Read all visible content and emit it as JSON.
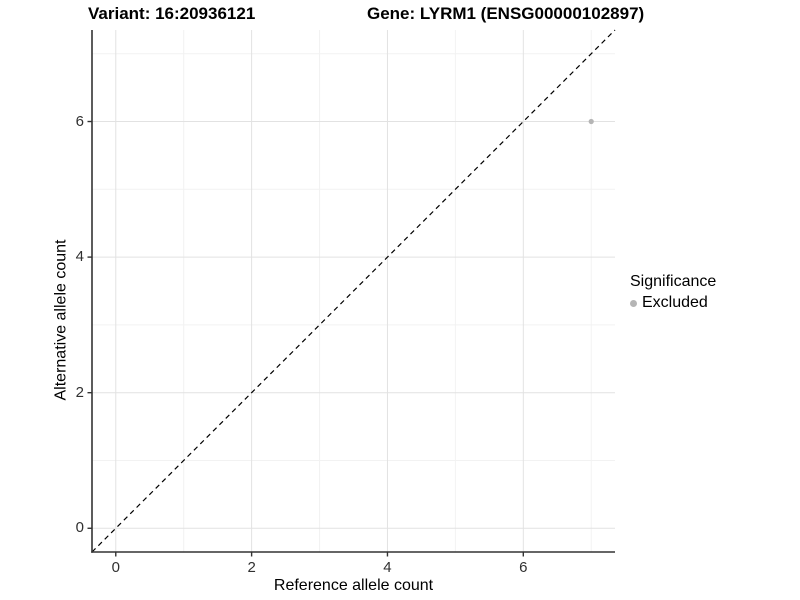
{
  "titles": {
    "left": "Variant: 16:20936121",
    "right": "Gene: LYRM1 (ENSG00000102897)"
  },
  "chart_data": {
    "type": "scatter",
    "title_left": "Variant: 16:20936121",
    "title_right": "Gene: LYRM1 (ENSG00000102897)",
    "xlabel": "Reference allele count",
    "ylabel": "Alternative allele count",
    "xlim": [
      -0.35,
      7.35
    ],
    "ylim": [
      -0.35,
      7.35
    ],
    "x_major_ticks": [
      0,
      2,
      4,
      6
    ],
    "y_major_ticks": [
      0,
      2,
      4,
      6
    ],
    "x_minor_ticks": [
      1,
      3,
      5,
      7
    ],
    "y_minor_ticks": [
      1,
      3,
      5,
      7
    ],
    "grid": true,
    "points": [
      {
        "x": 7,
        "y": 6,
        "series": "Excluded"
      }
    ],
    "reference_line": {
      "type": "identity",
      "style": "dashed",
      "from": [
        -0.35,
        -0.35
      ],
      "to": [
        7.35,
        7.35
      ]
    },
    "legend": {
      "position": "right",
      "title": "Significance",
      "items": [
        {
          "label": "Excluded",
          "color": "#b5b5b5"
        }
      ]
    }
  },
  "colors": {
    "background": "#ffffff",
    "grid_major": "#e2e2e2",
    "grid_minor": "#f2f2f2",
    "axis_line": "#333333",
    "tick_text": "#303030",
    "title_text": "#000000",
    "point": "#b5b5b5",
    "reference_line": "#000000"
  }
}
